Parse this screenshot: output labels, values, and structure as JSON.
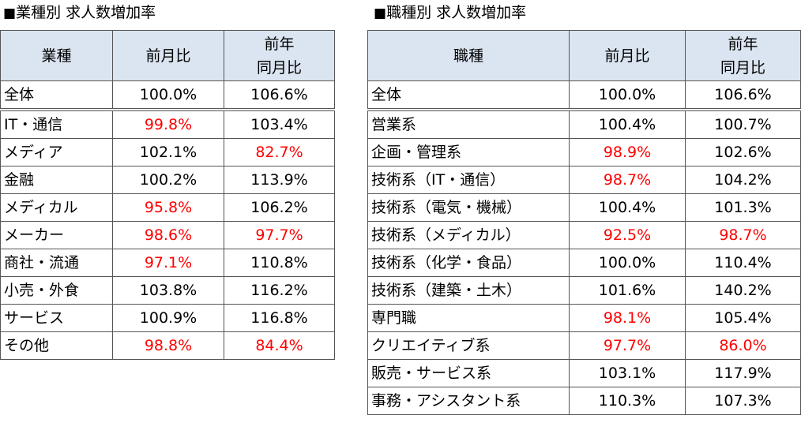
{
  "industry": {
    "title_bullet": "■",
    "title": "業種別 求人数増加率",
    "headers": {
      "category": "業種",
      "mom": "前月比",
      "yoy_line1": "前年",
      "yoy_line2": "同月比"
    },
    "rows": [
      {
        "name": "全体",
        "mom": "100.0%",
        "yoy": "106.6%"
      },
      {
        "name": "IT・通信",
        "mom": "99.8%",
        "yoy": "103.4%"
      },
      {
        "name": "メディア",
        "mom": "102.1%",
        "yoy": "82.7%"
      },
      {
        "name": "金融",
        "mom": "100.2%",
        "yoy": "113.9%"
      },
      {
        "name": "メディカル",
        "mom": "95.8%",
        "yoy": "106.2%"
      },
      {
        "name": "メーカー",
        "mom": "98.6%",
        "yoy": "97.7%"
      },
      {
        "name": "商社・流通",
        "mom": "97.1%",
        "yoy": "110.8%"
      },
      {
        "name": "小売・外食",
        "mom": "103.8%",
        "yoy": "116.2%"
      },
      {
        "name": "サービス",
        "mom": "100.9%",
        "yoy": "116.8%"
      },
      {
        "name": "その他",
        "mom": "98.8%",
        "yoy": "84.4%"
      }
    ]
  },
  "occupation": {
    "title_bullet": "■",
    "title": "職種別 求人数増加率",
    "headers": {
      "category": "職種",
      "mom": "前月比",
      "yoy_line1": "前年",
      "yoy_line2": "同月比"
    },
    "rows": [
      {
        "name": "全体",
        "mom": "100.0%",
        "yoy": "106.6%"
      },
      {
        "name": "営業系",
        "mom": "100.4%",
        "yoy": "100.7%"
      },
      {
        "name": "企画・管理系",
        "mom": "98.9%",
        "yoy": "102.6%"
      },
      {
        "name": "技術系（IT・通信）",
        "mom": "98.7%",
        "yoy": "104.2%"
      },
      {
        "name": "技術系（電気・機械）",
        "mom": "100.4%",
        "yoy": "101.3%"
      },
      {
        "name": "技術系（メディカル）",
        "mom": "92.5%",
        "yoy": "98.7%"
      },
      {
        "name": "技術系（化学・食品）",
        "mom": "100.0%",
        "yoy": "110.4%"
      },
      {
        "name": "技術系（建築・土木）",
        "mom": "101.6%",
        "yoy": "140.2%"
      },
      {
        "name": "専門職",
        "mom": "98.1%",
        "yoy": "105.4%"
      },
      {
        "name": "クリエイティブ系",
        "mom": "97.7%",
        "yoy": "86.0%"
      },
      {
        "name": "販売・サービス系",
        "mom": "103.1%",
        "yoy": "117.9%"
      },
      {
        "name": "事務・アシスタント系",
        "mom": "110.3%",
        "yoy": "107.3%"
      }
    ]
  },
  "colors": {
    "header_bg": "#dbe5f1",
    "below_100": "#ff0000",
    "border": "#555555"
  }
}
